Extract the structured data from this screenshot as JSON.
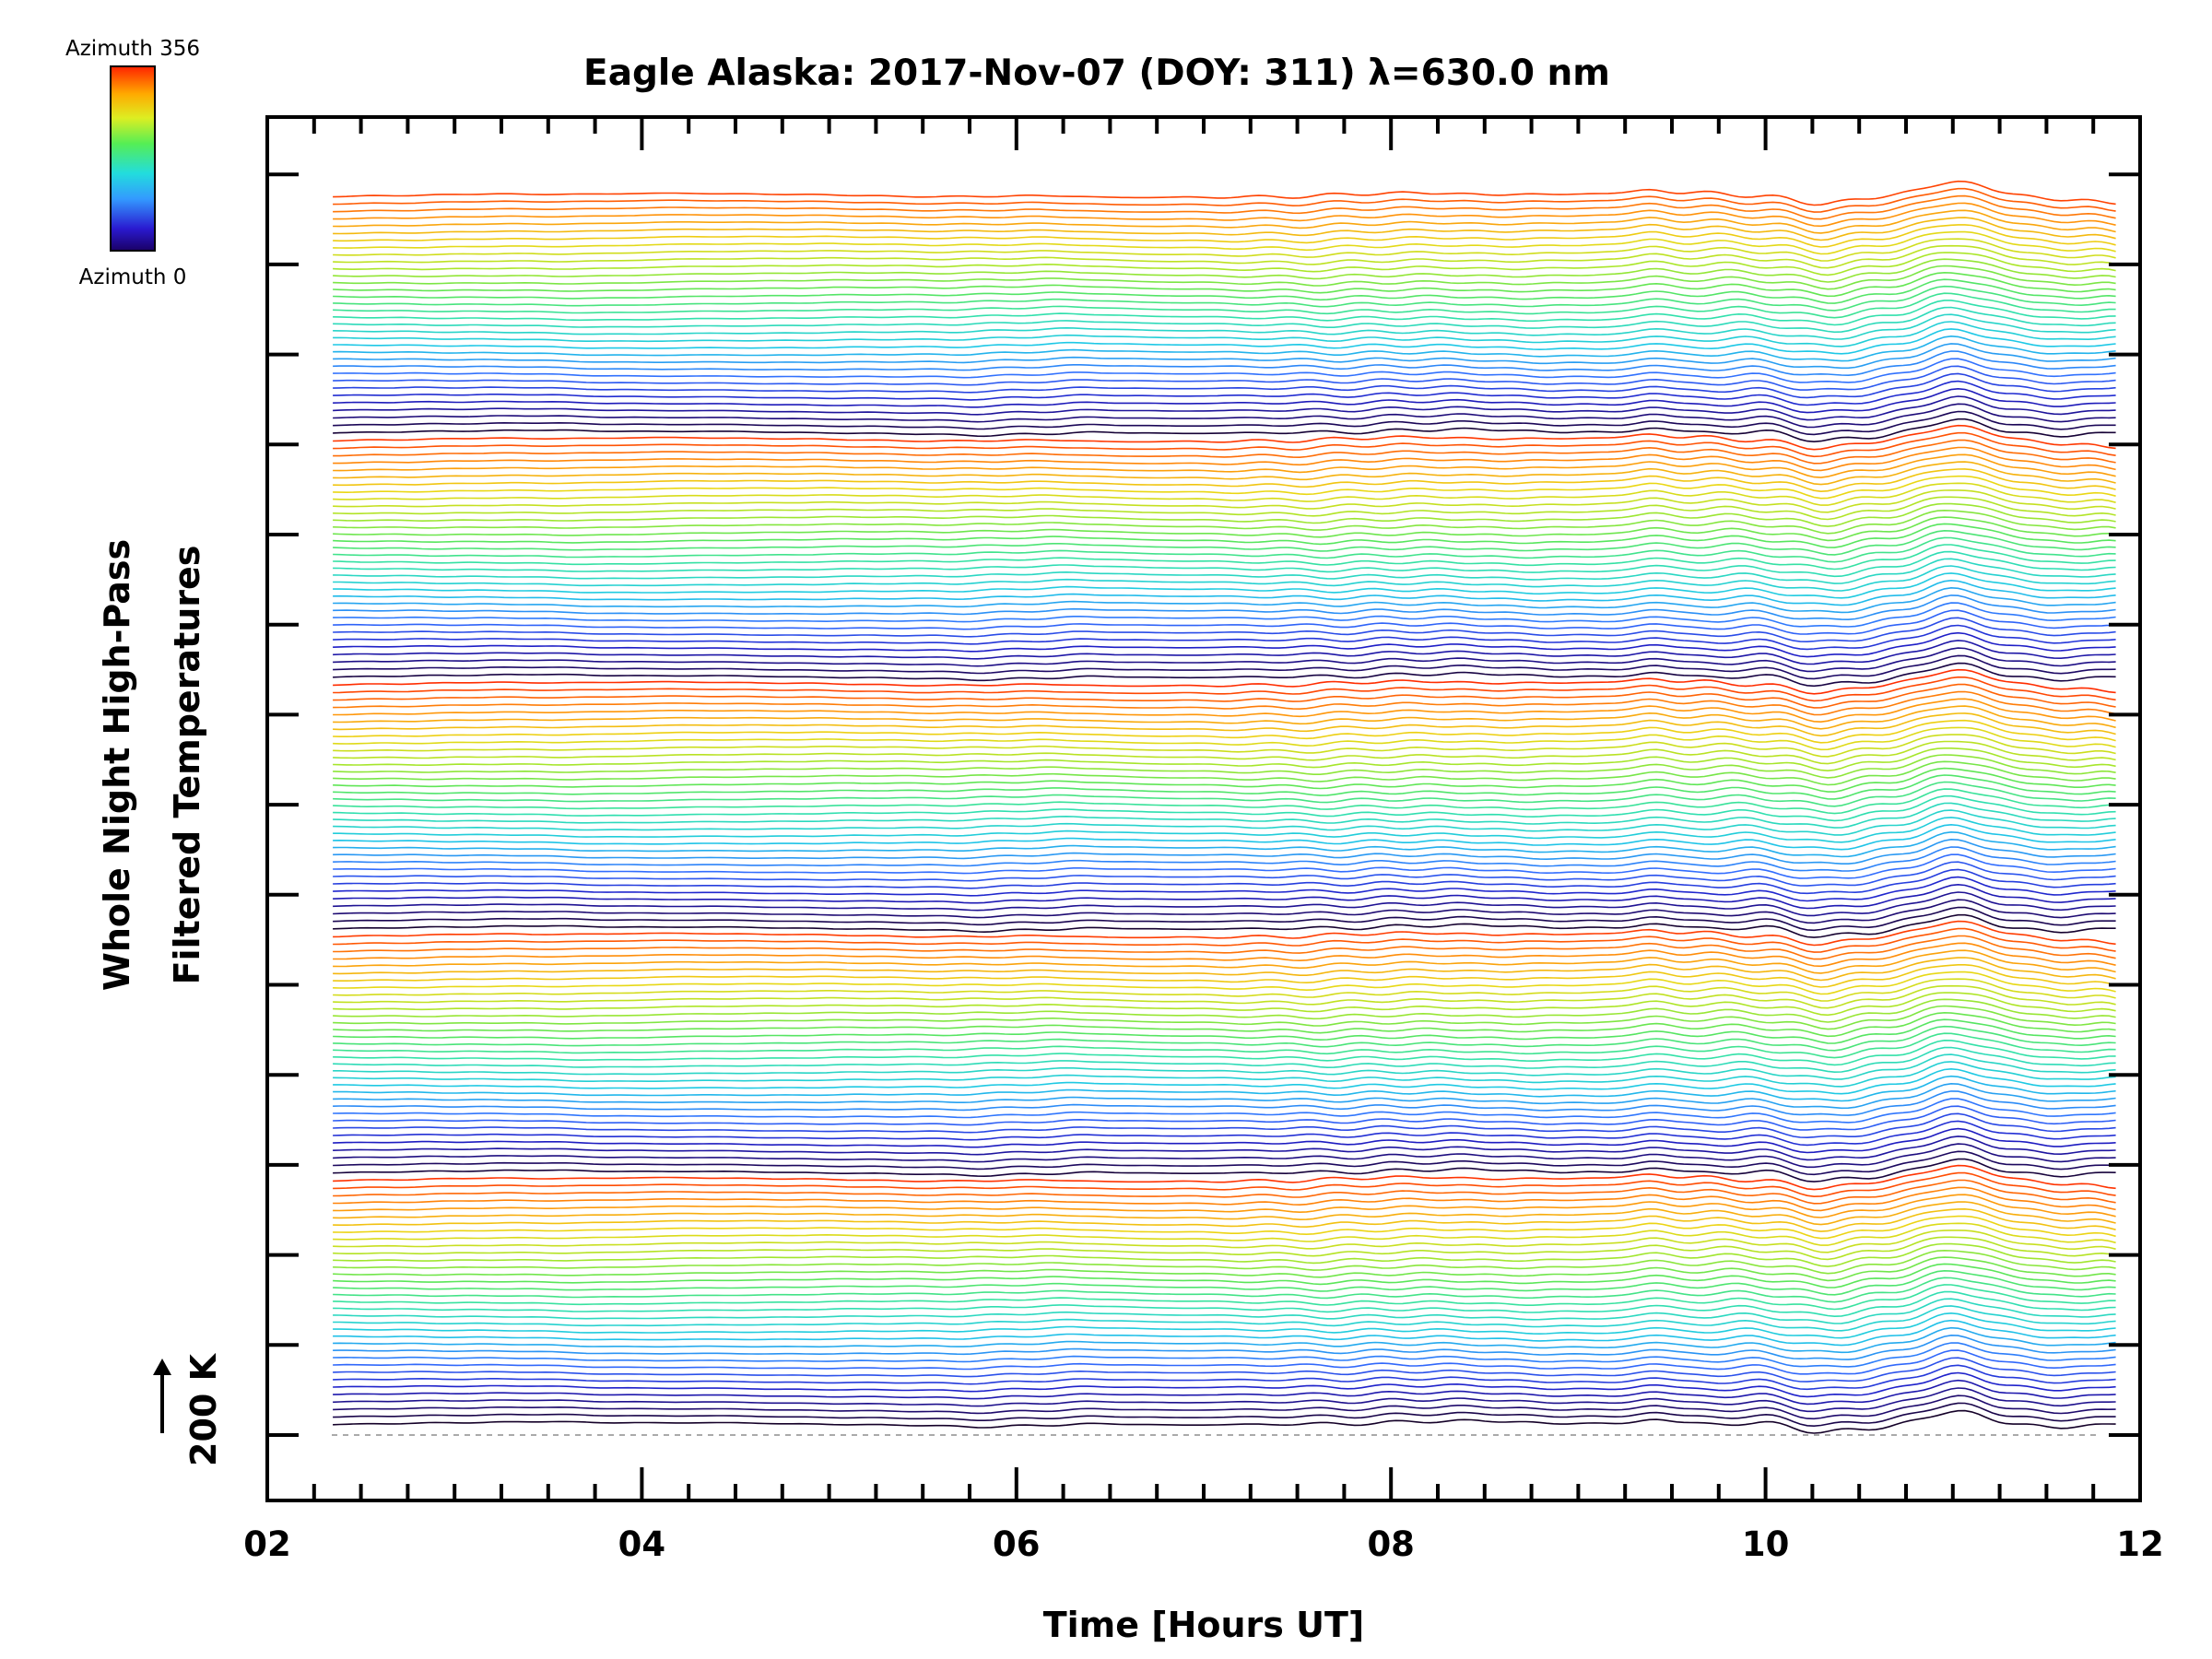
{
  "chart_data": {
    "type": "line",
    "title": "Eagle Alaska: 2017-Nov-07 (DOY: 311) λ=630.0 nm",
    "xlabel": "Time [Hours UT]",
    "ylabel_line1": "Whole Night High-Pass",
    "ylabel_line2": "Filtered Temperatures",
    "xlim": [
      2,
      12
    ],
    "x_ticks": [
      "02",
      "04",
      "06",
      "08",
      "10",
      "12"
    ],
    "x_start": 2.35,
    "x_end": 11.87,
    "scale_bar_label": "200 K",
    "colorbar": {
      "top_label": "Azimuth 356",
      "bottom_label": "Azimuth 0",
      "colormap": "rainbow"
    },
    "trace_count": 172,
    "azimuth_cycles": 5,
    "description": "Stacked high-pass filtered temperature traces, one per azimuth, offset vertically and colored by azimuth"
  }
}
